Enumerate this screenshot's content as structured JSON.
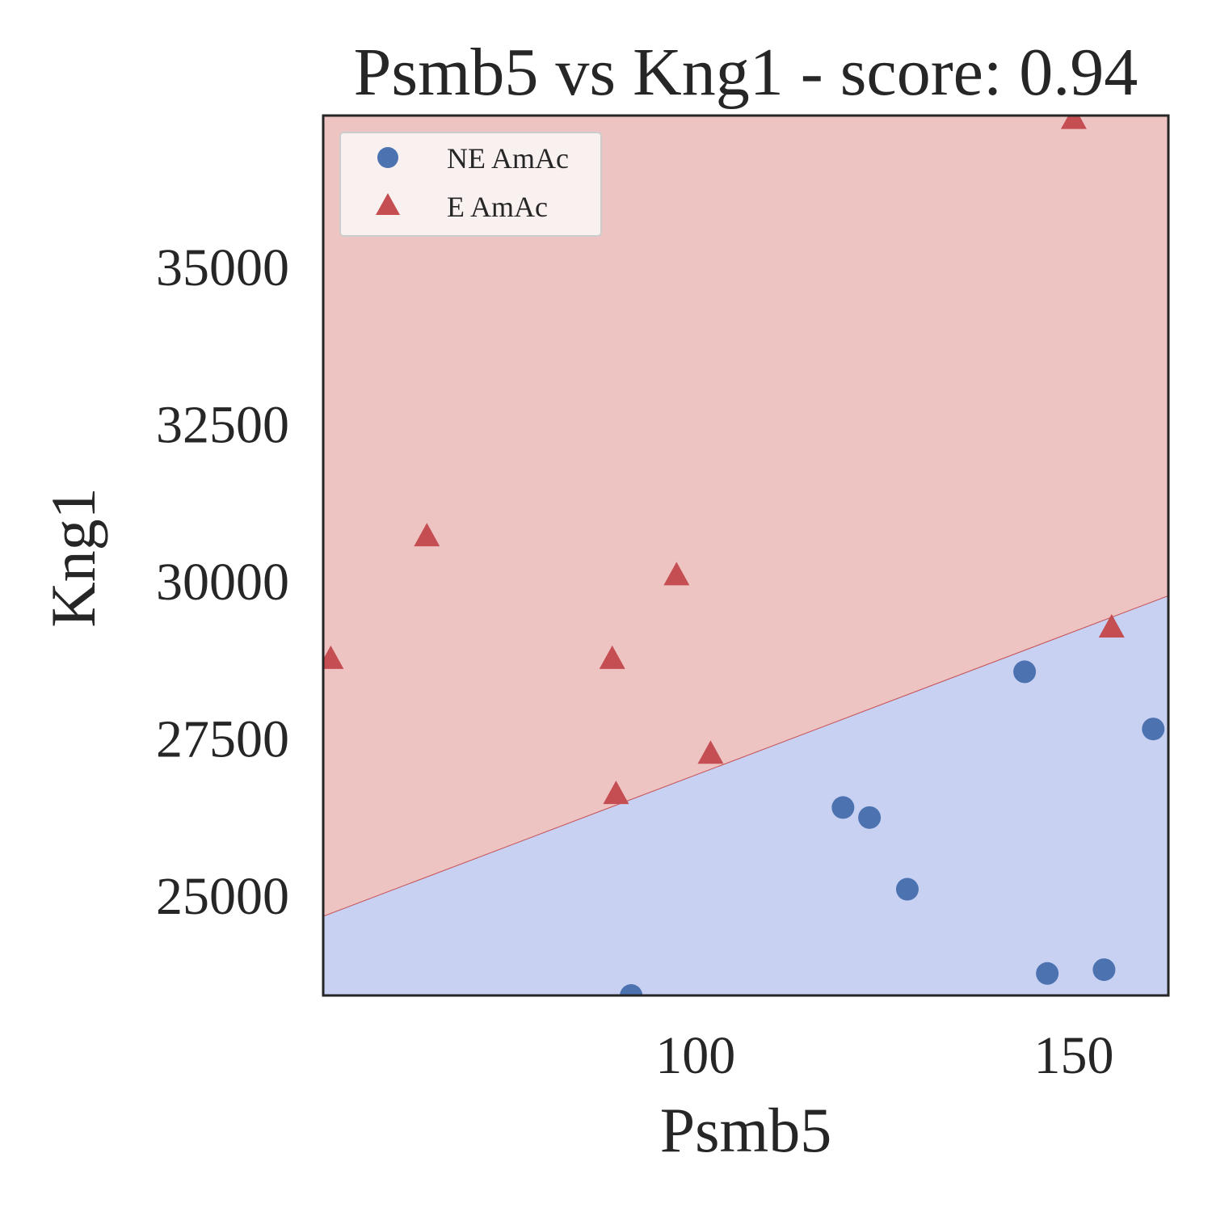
{
  "chart_data": {
    "type": "scatter",
    "title": "Psmb5 vs Kng1 - score: 0.94",
    "xlabel": "Psmb5",
    "ylabel": "Kng1",
    "xlim": [
      50.8,
      162.5
    ],
    "ylim": [
      23390,
      37390
    ],
    "x_ticks": [
      100,
      150
    ],
    "y_ticks": [
      25000,
      27500,
      30000,
      32500,
      35000
    ],
    "x_tick_labels": [
      "100",
      "150"
    ],
    "y_tick_labels": [
      "25000",
      "27500",
      "30000",
      "32500",
      "35000"
    ],
    "grid": false,
    "legend_position": "top-left",
    "decision_boundary": {
      "points": [
        [
          50.8,
          24650
        ],
        [
          162.5,
          29750
        ]
      ],
      "above_color": "#eec4c3",
      "below_color": "#c8d1f2"
    },
    "series": [
      {
        "name": "NE AmAc",
        "marker": "circle",
        "color": "#4c72b0",
        "x": [
          119.5,
          123.0,
          128.0,
          143.5,
          146.5,
          154.0,
          160.5,
          91.5
        ],
        "y": [
          26380,
          26220,
          25080,
          28540,
          23740,
          23800,
          27630,
          23390
        ]
      },
      {
        "name": "E AmAc",
        "marker": "triangle",
        "color": "#c44e52",
        "x": [
          51.8,
          64.5,
          89.0,
          89.5,
          97.5,
          102.0,
          150.0,
          155.0
        ],
        "y": [
          28740,
          30690,
          28740,
          26590,
          30070,
          27230,
          37330,
          29240
        ]
      }
    ]
  }
}
